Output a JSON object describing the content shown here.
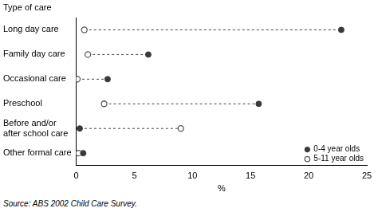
{
  "chart_data": {
    "type": "dot",
    "orientation": "horizontal",
    "y_label": "Type of care",
    "x_label": "%",
    "source": "Source: ABS 2002 Child Care Survey.",
    "categories": [
      "Long day care",
      "Family day care",
      "Occasional care",
      "Preschool",
      "Before and/or after school care",
      "Other formal care"
    ],
    "series": [
      {
        "name": "0-4 year olds",
        "color": "#3a3a3a",
        "marker": "filled_circle",
        "values": [
          22.8,
          6.2,
          2.7,
          15.7,
          0.3,
          0.6
        ]
      },
      {
        "name": "5-11 year olds",
        "color": "#555555",
        "marker": "open_circle",
        "values": [
          0.7,
          1.0,
          0.1,
          2.4,
          9.0,
          0.2
        ]
      }
    ],
    "xlim": [
      0,
      25
    ],
    "xticks": [
      0,
      5,
      10,
      15,
      20,
      25
    ],
    "grid": false,
    "legend": "lower right",
    "line_style": "dashed"
  }
}
